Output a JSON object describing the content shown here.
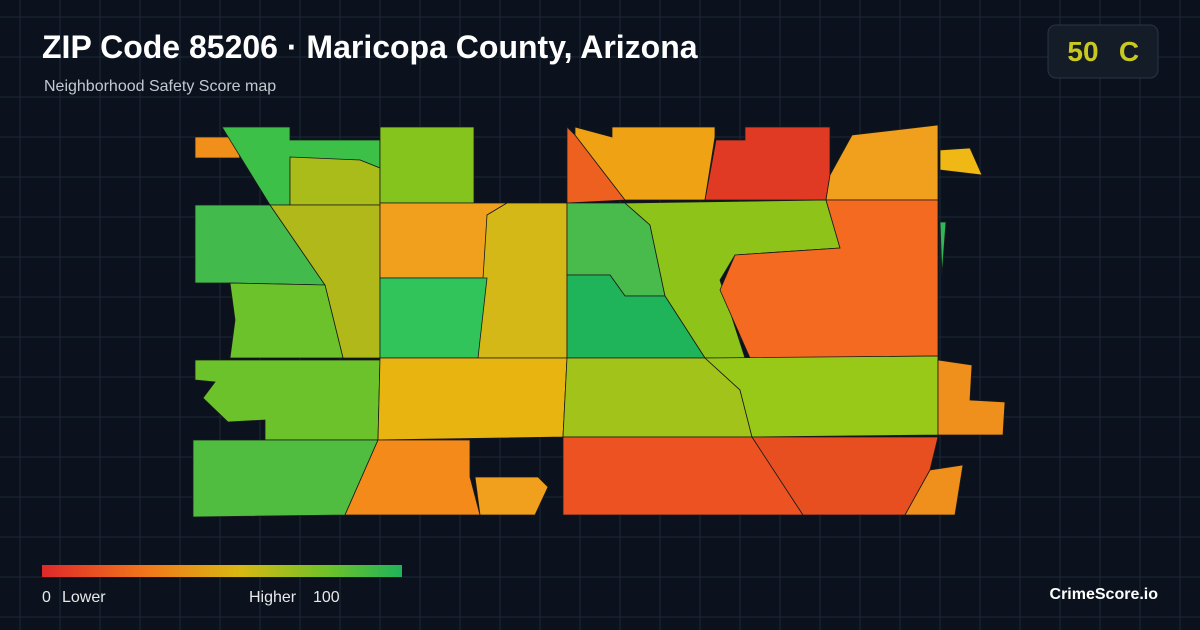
{
  "header": {
    "title": "ZIP Code 85206 · Maricopa County, Arizona",
    "subtitle": "Neighborhood Safety Score map"
  },
  "score": {
    "value": 50,
    "grade": "C"
  },
  "legend": {
    "min": 0,
    "min_label": "Lower",
    "max_label": "Higher",
    "max": 100
  },
  "brand": "CrimeScore.io"
}
